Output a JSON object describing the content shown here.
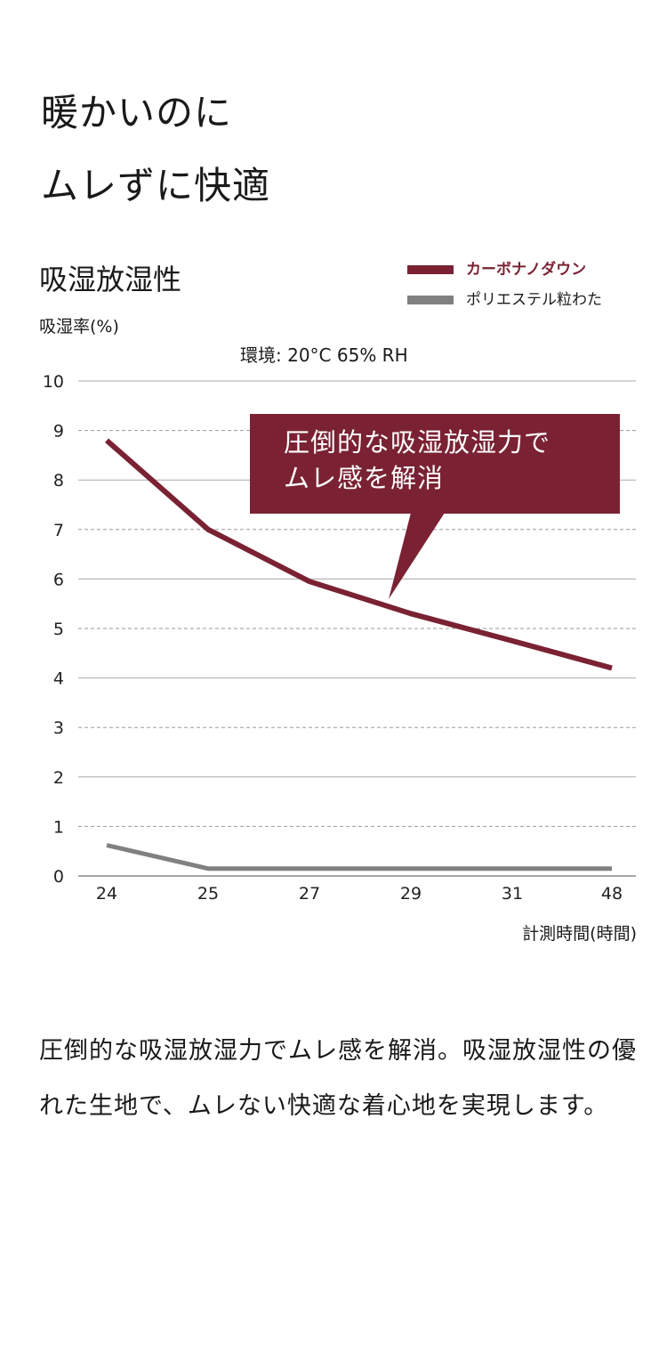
{
  "headline": {
    "line1": "暖かいのに",
    "line2": "ムレずに快適"
  },
  "chart_title": "吸湿放湿性",
  "legend": [
    {
      "label": "カーボナノダウン",
      "color": "#7a2233"
    },
    {
      "label": "ポリエステル粒わた",
      "color": "#808080"
    }
  ],
  "callout": {
    "line1": "圧倒的な吸湿放湿力で",
    "line2": "ムレ感を解消"
  },
  "body_text": "圧倒的な吸湿放湿力でムレ感を解消。吸湿放湿性の優れた生地で、ムレない快適な着心地を実現します。",
  "chart_data": {
    "type": "line",
    "ylabel": "吸湿率(%)",
    "xlabel": "計測時間(時間)",
    "annotation": "環境: 20°C 65% RH",
    "categories": [
      "24",
      "25",
      "27",
      "29",
      "31",
      "48"
    ],
    "ylim": [
      0,
      10
    ],
    "yticks": [
      "0",
      "1",
      "2",
      "3",
      "4",
      "5",
      "6",
      "7",
      "8",
      "9",
      "10"
    ],
    "grid": true,
    "legend_position": "top-right",
    "series": [
      {
        "name": "カーボナノダウン",
        "color": "#7a2233",
        "values": [
          8.8,
          7.0,
          5.95,
          5.3,
          4.75,
          4.2
        ]
      },
      {
        "name": "ポリエステル粒わた",
        "color": "#808080",
        "values": [
          0.62,
          0.15,
          0.15,
          0.15,
          0.15,
          0.15
        ]
      }
    ]
  }
}
